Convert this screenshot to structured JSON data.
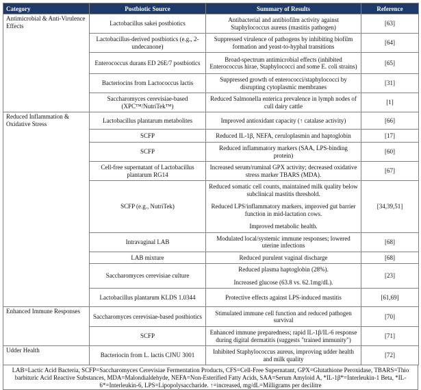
{
  "table": {
    "header": [
      "Category",
      "Postbiotic Source",
      "Summary of Results",
      "Reference"
    ],
    "rows": [
      {
        "category": "Antimicrobial & Anti-Virulence Effects",
        "source": "Lactobacillus sakei postbiotics",
        "summary": [
          "Antibacterial and antibiofilm activity against Staphylococcus aureus (mastitis pathogen)"
        ],
        "reference": "[63]"
      },
      {
        "source": "Lactobacillus-derived postbiotics (e.g., 2-undecanone)",
        "summary": [
          "Suppressed virulence of pathogens by inhibiting biofilm formation and yeast-to-hyphal transitions"
        ],
        "reference": "[64]"
      },
      {
        "source": "Enterococcus durans ED 26E/7 postbiotics",
        "summary": [
          "Broad-spectrum antimicrobial effects (inhibited Enterococcus hirae, Staphylococci and some E. coli strains)"
        ],
        "reference": "[65]"
      },
      {
        "source": "Bacteriocins from Lactococcus lactis",
        "summary": [
          "Suppressed growth of enterococci/staphylococci by disrupting cytoplasmic membranes"
        ],
        "reference": "[31]"
      },
      {
        "source": "Saccharomyces cerevisiae-based (XPC™/NutriTek™)",
        "summary": [
          "Reduced Salmonella enterica prevalence in lymph nodes of cull dairy cattle"
        ],
        "reference": "[1]"
      },
      {
        "category": "Reduced Inflammation & Oxidative Stress",
        "source": "Lactobacillus plantarum metabolites",
        "summary": [
          "Improved antioxidant capacity (↑ catalase activity)"
        ],
        "reference": "[66]"
      },
      {
        "source": "SCFP",
        "summary": [
          "Reduced IL-1β, NEFA, ceruloplasmin and haptoglobin"
        ],
        "reference": "[17]"
      },
      {
        "source": "SCFP",
        "summary": [
          "Reduced inflammatory markers (SAA, LPS-binding protein)"
        ],
        "reference": "[60]"
      },
      {
        "source": "Cell-free supernatant of Lactobacillus plantarum RG14",
        "summary": [
          "Increased serum/ruminal GPX activity; decreased oxidative stress marker TBARS (MDA)."
        ],
        "reference": "[67]"
      },
      {
        "source": "SCFP (e.g., NutriTek)",
        "summary": [
          "Reduced somatic cell counts, maintained milk quality below subclinical mastitis threshold.",
          "Reduced LPS/inflammatory markers, improved gut barrier function in mid-lactation cows.",
          "Improved metabolic health."
        ],
        "reference": "[34,39,51]"
      },
      {
        "source": "Intravaginal LAB",
        "summary": [
          "Modulated local/systemic immune responses; lowered uterine infections"
        ],
        "reference": "[68]"
      },
      {
        "source": "LAB mixture",
        "summary": [
          "Reduced purulent vaginal discharge"
        ],
        "reference": "[68]"
      },
      {
        "source": "Saccharomyces cerevisiae culture",
        "summary": [
          "Reduced plasma haptoglobin (28%).",
          "Increased glucose (63.8 vs. 62.1mg/dL)."
        ],
        "reference": "[23]"
      },
      {
        "source": "Lactobacillus plantarum KLDS 1.0344",
        "summary": [
          "Protective effects against LPS-induced mastitis"
        ],
        "reference": "[61,69]"
      },
      {
        "category": "Enhanced Immune Responses",
        "source": "Saccharomyces cerevisiae-based postbiotics",
        "summary": [
          "Stimulated immune cell function and reduced pathogen survival"
        ],
        "reference": "[70]"
      },
      {
        "source": "SCFP",
        "summary": [
          "Enhanced immune preparedness; rapid IL-1β/IL-6 response during digital dermatitis (suggests \"trained immunity\")"
        ],
        "reference": "[71]"
      },
      {
        "category": "Udder Health",
        "source": "Bacteriocin from L. lactis CJNU 3001",
        "summary": [
          "Inhibited Staphylococcus aureus, improving udder health and milk quality"
        ],
        "reference": "[72]"
      }
    ],
    "footnote": "LAB=Lactic Acid Bacteria, SCFP=Saccharomyces Cerevisiae Fermentation Products, CFS=Cell-Free Supernatant, GPX=Glutathione Peroxidase, TBARS=Thio barbituric Acid Reactive Substances, MDA=Malondialdehyde, NEFA=Non-Esterified Fatty Acids, SAA=Serum Amyloid A, *IL-1β*=Interleukin-1 Beta, *IL-6*=Interleukin-6, LPS=Lipopolysaccharide. ↑=increased, mg/dL=Milligrams per decilitre"
  }
}
